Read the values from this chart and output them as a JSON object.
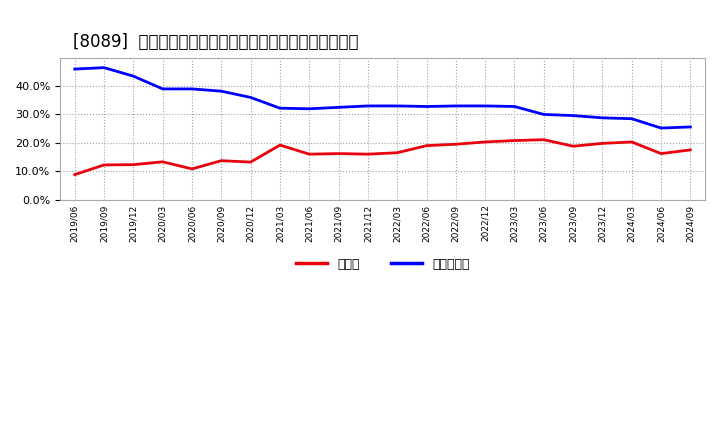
{
  "title": "[8089]  現預金、有利子負債の総資産に対する比率の推移",
  "x_labels": [
    "2019/06",
    "2019/09",
    "2019/12",
    "2020/03",
    "2020/06",
    "2020/09",
    "2020/12",
    "2021/03",
    "2021/06",
    "2021/09",
    "2021/12",
    "2022/03",
    "2022/06",
    "2022/09",
    "2022/12",
    "2023/03",
    "2023/06",
    "2023/09",
    "2023/12",
    "2024/03",
    "2024/06",
    "2024/09"
  ],
  "cash": [
    0.088,
    0.122,
    0.123,
    0.133,
    0.108,
    0.137,
    0.132,
    0.192,
    0.16,
    0.162,
    0.16,
    0.165,
    0.19,
    0.195,
    0.203,
    0.208,
    0.211,
    0.188,
    0.198,
    0.203,
    0.162,
    0.175
  ],
  "debt": [
    0.46,
    0.465,
    0.435,
    0.39,
    0.39,
    0.382,
    0.36,
    0.322,
    0.32,
    0.325,
    0.33,
    0.33,
    0.328,
    0.33,
    0.33,
    0.328,
    0.3,
    0.296,
    0.288,
    0.285,
    0.252,
    0.256
  ],
  "cash_color": "#e8000d",
  "debt_color": "#0000ff",
  "bg_color": "#ffffff",
  "grid_color": "#aaaaaa",
  "title_fontsize": 12,
  "legend_cash": "現預金",
  "legend_debt": "有利子負債",
  "ylim": [
    0.0,
    0.5
  ],
  "yticks": [
    0.0,
    0.1,
    0.2,
    0.3,
    0.4
  ]
}
